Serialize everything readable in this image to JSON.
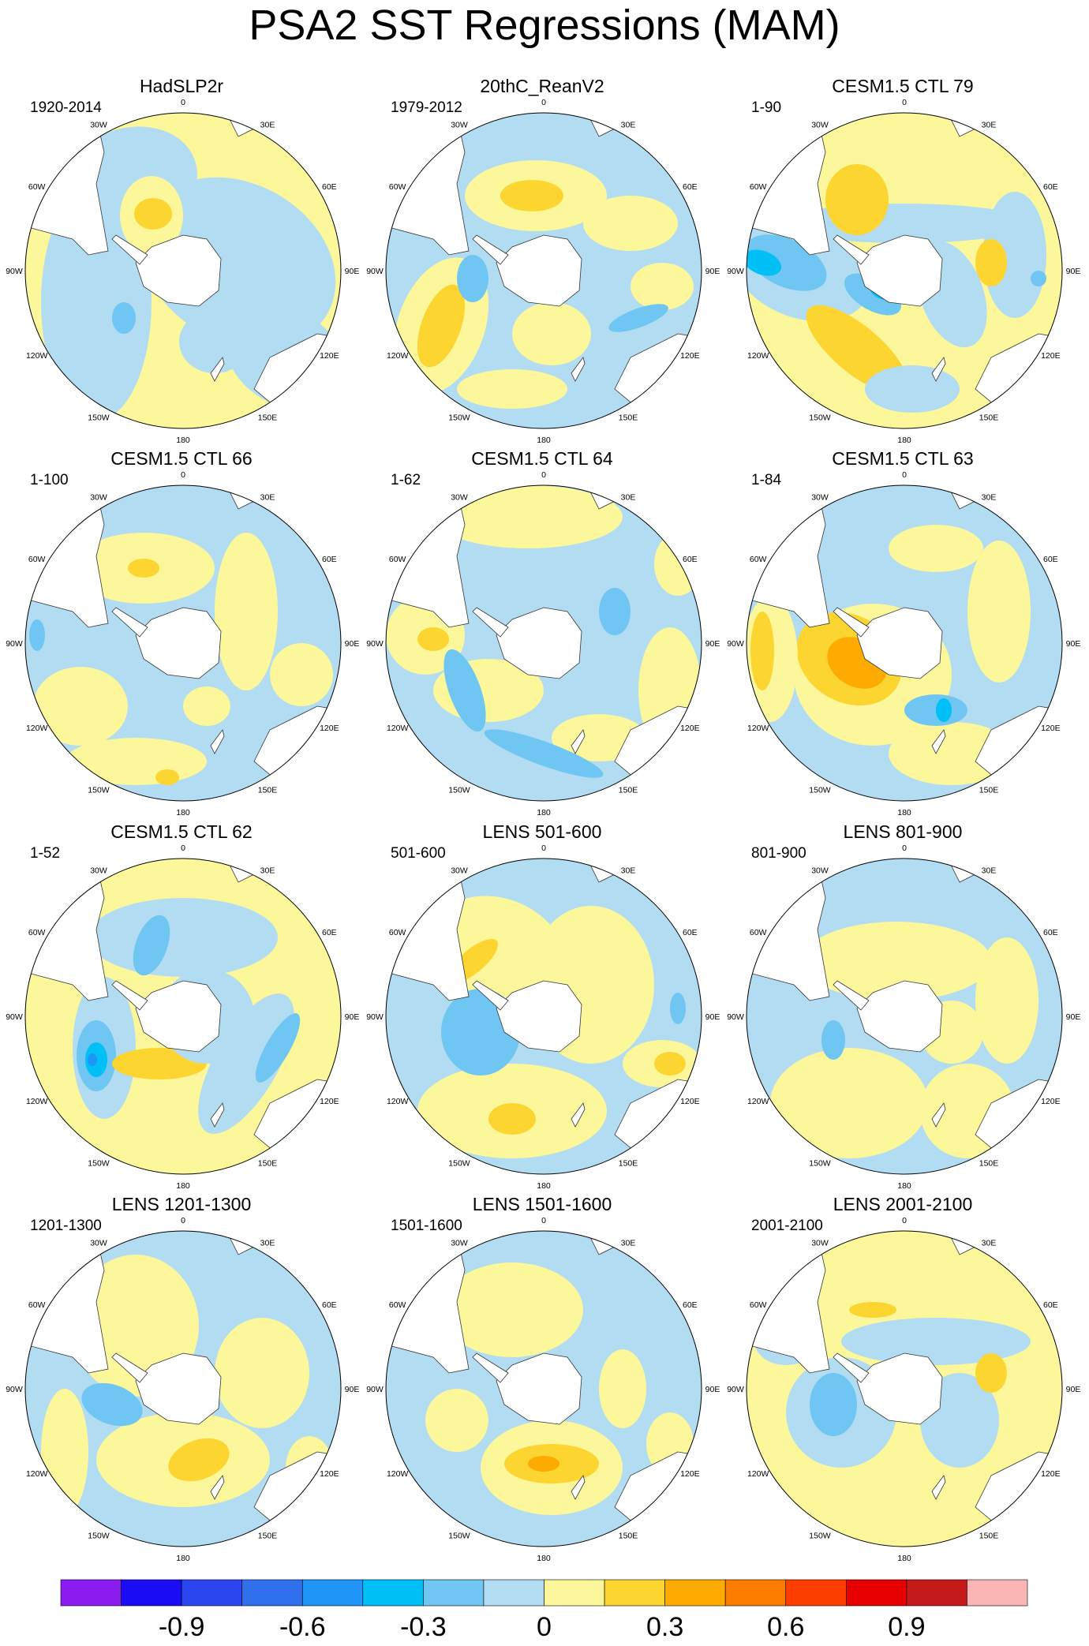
{
  "title": "PSA2 SST Regressions (MAM)",
  "longitude_labels": [
    "0",
    "30E",
    "60E",
    "90E",
    "120E",
    "150E",
    "180",
    "150W",
    "120W",
    "90W",
    "60W",
    "30W"
  ],
  "panels": [
    {
      "title": "HadSLP2r",
      "years": "1920-2014",
      "pattern": "hadslp"
    },
    {
      "title": "20thC_ReanV2",
      "years": "1979-2012",
      "pattern": "reanv2"
    },
    {
      "title": "CESM1.5 CTL 79",
      "years": "1-90",
      "pattern": "ctl79"
    },
    {
      "title": "CESM1.5 CTL 66",
      "years": "1-100",
      "pattern": "ctl66"
    },
    {
      "title": "CESM1.5 CTL 64",
      "years": "1-62",
      "pattern": "ctl64"
    },
    {
      "title": "CESM1.5 CTL 63",
      "years": "1-84",
      "pattern": "ctl63"
    },
    {
      "title": "CESM1.5 CTL 62",
      "years": "1-52",
      "pattern": "ctl62"
    },
    {
      "title": "LENS 501-600",
      "years": "501-600",
      "pattern": "lens501"
    },
    {
      "title": "LENS 801-900",
      "years": "801-900",
      "pattern": "lens801"
    },
    {
      "title": "LENS 1201-1300",
      "years": "1201-1300",
      "pattern": "lens1201"
    },
    {
      "title": "LENS 1501-1600",
      "years": "1501-1600",
      "pattern": "lens1501"
    },
    {
      "title": "LENS 2001-2100",
      "years": "2001-2100",
      "pattern": "lens2001"
    }
  ],
  "colorbar": {
    "colors": [
      "#8a1cf0",
      "#1a0cf5",
      "#2b46f0",
      "#3070ec",
      "#1e95f7",
      "#00c0f5",
      "#6fc6f2",
      "#b2dcf1",
      "#fcf79b",
      "#fdd530",
      "#fdab00",
      "#fc7c00",
      "#fd3c00",
      "#e60000",
      "#c61a1a",
      "#fbb5b5"
    ],
    "tick_labels": [
      "-0.9",
      "-0.6",
      "-0.3",
      "0",
      "0.3",
      "0.6",
      "0.9"
    ]
  }
}
